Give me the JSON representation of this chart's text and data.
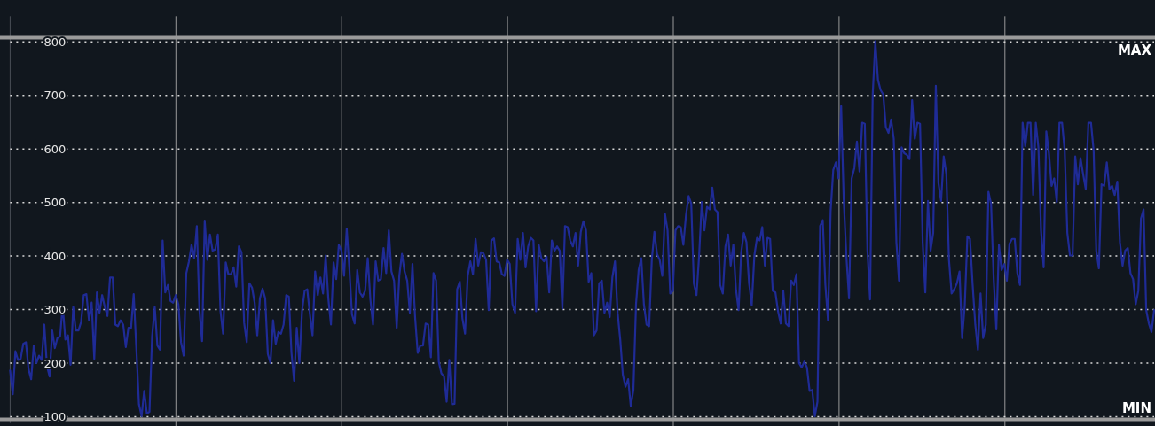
{
  "chart_data": {
    "type": "line",
    "categories": [
      null,
      null,
      null,
      null,
      null,
      null,
      null,
      null,
      null,
      null,
      null,
      null,
      null,
      null,
      null,
      null,
      null,
      null,
      null,
      null,
      null,
      null,
      null,
      null,
      null,
      null,
      null,
      null,
      null,
      null,
      null,
      null,
      null,
      null,
      null,
      null,
      null,
      null,
      null,
      null,
      null,
      null,
      null,
      null,
      null,
      null,
      null,
      null,
      null,
      null,
      null,
      null,
      null,
      null,
      null,
      null,
      null,
      null,
      null,
      null,
      null,
      null,
      null,
      null,
      null,
      null,
      null,
      null,
      null,
      null,
      null,
      null,
      null,
      null,
      null,
      null,
      null,
      null,
      null,
      null,
      null,
      null,
      null,
      null,
      null,
      null,
      null,
      null,
      null,
      null,
      null,
      null,
      null,
      null,
      null,
      null,
      null,
      null,
      null,
      null,
      null,
      null,
      null,
      null,
      null,
      null,
      null,
      null,
      null,
      null,
      null,
      null,
      null,
      null,
      null,
      null,
      null,
      null,
      null,
      null,
      null,
      null,
      null,
      null,
      null,
      null,
      null,
      null,
      null,
      null,
      null,
      null,
      null,
      null,
      null,
      null,
      null,
      null,
      null,
      null,
      null,
      null,
      null,
      null,
      null,
      null,
      null,
      null,
      null,
      null,
      null,
      null,
      null,
      null,
      null,
      null,
      null,
      null,
      null,
      null,
      null,
      null,
      null,
      null,
      null,
      null,
      null,
      null,
      null,
      null,
      null,
      null,
      null,
      null,
      null,
      null,
      null,
      null,
      null,
      null,
      null,
      null,
      null,
      null,
      null,
      null,
      null,
      null,
      null,
      null,
      null,
      null,
      null,
      null,
      null,
      null,
      null,
      null,
      null,
      null,
      null,
      null,
      null,
      null,
      null,
      null,
      null,
      null,
      null,
      null,
      null,
      null,
      null,
      null,
      null,
      null,
      null,
      null,
      null,
      null,
      null,
      null,
      null,
      null,
      null,
      null,
      null,
      null,
      null,
      null,
      null,
      null,
      null,
      null,
      null,
      null,
      null,
      null,
      null,
      null,
      null,
      null,
      null,
      null,
      null,
      null,
      null,
      null,
      null,
      null,
      null,
      null,
      null,
      null,
      null,
      null,
      null,
      null,
      null,
      null,
      null,
      null,
      null,
      null,
      null,
      null,
      null,
      null,
      null,
      null,
      null,
      null,
      null,
      null,
      null,
      null,
      null,
      null,
      null,
      null,
      null,
      null,
      null,
      null,
      null,
      null,
      null,
      null,
      null,
      null,
      null,
      null,
      null,
      null,
      null,
      null,
      null,
      null,
      null,
      null,
      null,
      null,
      null,
      null,
      null,
      null,
      null,
      null,
      null,
      null,
      null,
      null,
      null,
      null,
      null,
      null,
      null,
      null,
      null,
      null,
      null,
      null,
      null,
      null,
      null,
      null,
      null,
      null,
      null,
      null,
      null,
      null,
      null,
      null,
      null,
      null,
      null,
      null,
      null,
      null,
      null,
      null,
      null,
      null,
      null,
      null,
      null,
      null,
      null,
      null,
      null,
      null,
      null,
      null,
      null,
      null,
      null,
      null,
      null,
      null,
      null,
      null,
      null,
      null,
      null,
      null,
      null,
      null,
      null,
      null,
      null,
      null,
      null,
      null,
      null,
      null,
      null,
      null,
      null,
      null,
      null,
      null,
      null,
      null,
      null,
      null,
      null,
      null,
      null,
      null,
      null,
      null,
      null,
      null,
      null,
      null,
      null,
      null,
      null,
      null,
      null,
      null,
      null,
      null,
      null,
      null,
      null,
      null,
      null,
      null,
      null,
      null,
      null,
      null,
      null,
      null,
      null,
      null,
      null,
      null,
      null,
      null,
      null,
      null,
      null,
      null,
      null,
      null,
      null,
      null,
      null,
      null,
      null,
      null,
      null,
      null
    ],
    "series": [
      {
        "color": "#1f2b96",
        "values": [
          186,
          142,
          222,
          206,
          208,
          236,
          239,
          189,
          170,
          233,
          200,
          214,
          206,
          272,
          195,
          175,
          261,
          228,
          247,
          250,
          308,
          244,
          252,
          197,
          305,
          261,
          261,
          277,
          327,
          329,
          280,
          313,
          208,
          332,
          294,
          327,
          305,
          288,
          360,
          360,
          272,
          269,
          280,
          272,
          230,
          266,
          266,
          329,
          228,
          123,
          101,
          148,
          106,
          109,
          250,
          305,
          233,
          225,
          429,
          332,
          346,
          316,
          313,
          327,
          310,
          239,
          214,
          368,
          390,
          421,
          396,
          456,
          299,
          241,
          466,
          393,
          440,
          410,
          412,
          440,
          297,
          255,
          388,
          366,
          366,
          379,
          343,
          418,
          407,
          275,
          239,
          349,
          341,
          313,
          252,
          321,
          339,
          321,
          217,
          200,
          280,
          236,
          258,
          255,
          272,
          327,
          324,
          219,
          167,
          266,
          200,
          297,
          335,
          338,
          291,
          252,
          371,
          327,
          360,
          330,
          401,
          321,
          272,
          388,
          357,
          421,
          410,
          363,
          451,
          377,
          291,
          274,
          374,
          332,
          324,
          335,
          396,
          319,
          272,
          390,
          354,
          357,
          415,
          368,
          448,
          371,
          354,
          266,
          363,
          404,
          371,
          354,
          294,
          385,
          286,
          219,
          233,
          233,
          274,
          272,
          211,
          368,
          354,
          203,
          181,
          175,
          128,
          206,
          123,
          124,
          338,
          352,
          283,
          255,
          363,
          390,
          366,
          432,
          382,
          407,
          405,
          393,
          299,
          429,
          433,
          390,
          388,
          366,
          363,
          393,
          385,
          310,
          294,
          432,
          393,
          443,
          379,
          418,
          434,
          429,
          297,
          421,
          396,
          390,
          399,
          332,
          429,
          410,
          418,
          410,
          302,
          456,
          454,
          429,
          418,
          443,
          382,
          445,
          465,
          448,
          352,
          368,
          252,
          261,
          349,
          354,
          294,
          313,
          286,
          360,
          390,
          294,
          244,
          178,
          156,
          170,
          120,
          150,
          310,
          374,
          396,
          310,
          272,
          269,
          393,
          445,
          404,
          393,
          363,
          479,
          448,
          330,
          335,
          448,
          456,
          454,
          421,
          476,
          512,
          498,
          349,
          327,
          401,
          501,
          448,
          492,
          487,
          528,
          487,
          482,
          346,
          330,
          418,
          440,
          382,
          421,
          338,
          299,
          407,
          443,
          426,
          349,
          308,
          401,
          434,
          429,
          454,
          382,
          434,
          432,
          335,
          332,
          297,
          274,
          335,
          274,
          269,
          354,
          346,
          366,
          200,
          192,
          203,
          192,
          148,
          150,
          101,
          128,
          456,
          467,
          346,
          280,
          484,
          561,
          575,
          545,
          680,
          503,
          399,
          321,
          545,
          564,
          614,
          558,
          649,
          647,
          410,
          319,
          702,
          801,
          729,
          710,
          702,
          641,
          630,
          655,
          619,
          426,
          354,
          603,
          592,
          589,
          581,
          691,
          619,
          649,
          647,
          426,
          332,
          503,
          410,
          443,
          718,
          536,
          503,
          586,
          553,
          393,
          330,
          338,
          349,
          371,
          247,
          308,
          437,
          432,
          346,
          272,
          225,
          330,
          247,
          272,
          520,
          498,
          357,
          263,
          421,
          374,
          385,
          354,
          423,
          432,
          432,
          368,
          346,
          649,
          605,
          649,
          649,
          514,
          649,
          603,
          448,
          379,
          633,
          592,
          531,
          545,
          501,
          649,
          649,
          597,
          443,
          401,
          401,
          586,
          534,
          583,
          553,
          525,
          649,
          649,
          597,
          410,
          377,
          534,
          531,
          575,
          525,
          531,
          514,
          539,
          426,
          382,
          410,
          415,
          368,
          357,
          310,
          335,
          470,
          487,
          299,
          274,
          258,
          299
        ]
      }
    ],
    "ylim": [
      88,
      848
    ],
    "yticks": [
      100,
      200,
      300,
      400,
      500,
      600,
      700,
      800
    ],
    "grid": "y",
    "tick_labels": "y",
    "ref_lines": [
      {
        "axis": "y",
        "value": 808,
        "label": "MAX",
        "color": "#9a9a9a"
      },
      {
        "axis": "y",
        "value": 95,
        "label": "MIN",
        "color": "#9a9a9a"
      }
    ]
  }
}
